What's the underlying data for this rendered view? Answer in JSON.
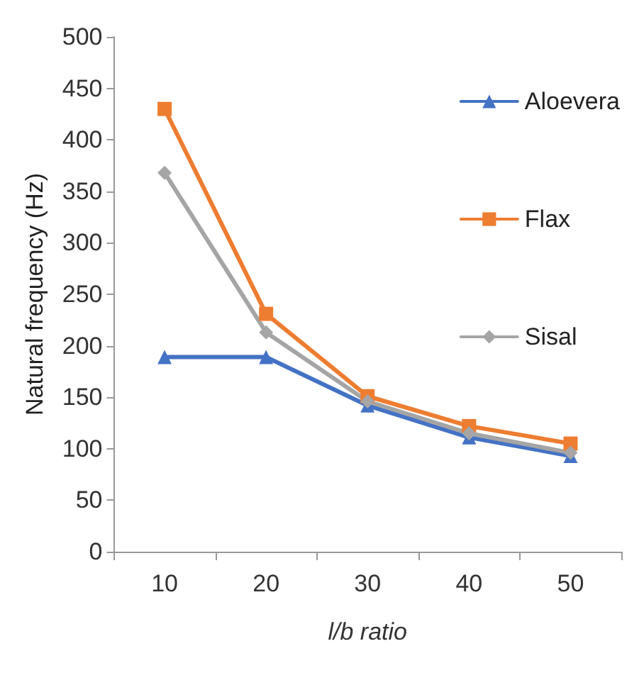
{
  "chart_data": {
    "type": "line",
    "xlabel": "l/b ratio",
    "ylabel": "Natural frequency (Hz)",
    "categories": [
      "10",
      "20",
      "30",
      "40",
      "50"
    ],
    "ylim": [
      0,
      500
    ],
    "yticks": [
      0,
      50,
      100,
      150,
      200,
      250,
      300,
      350,
      400,
      450,
      500
    ],
    "grid": false,
    "legend": "right",
    "line_style": "solid",
    "series": [
      {
        "name": "Aloevera",
        "color": "#4472c4",
        "marker": "triangle",
        "values": [
          189,
          189,
          142,
          111,
          93
        ]
      },
      {
        "name": "Flax",
        "color": "#ed7d31",
        "marker": "square",
        "values": [
          430,
          231,
          151,
          122,
          105
        ]
      },
      {
        "name": "Sisal",
        "color": "#a5a5a5",
        "marker": "diamond",
        "values": [
          368,
          213,
          146,
          115,
          96
        ]
      }
    ]
  }
}
